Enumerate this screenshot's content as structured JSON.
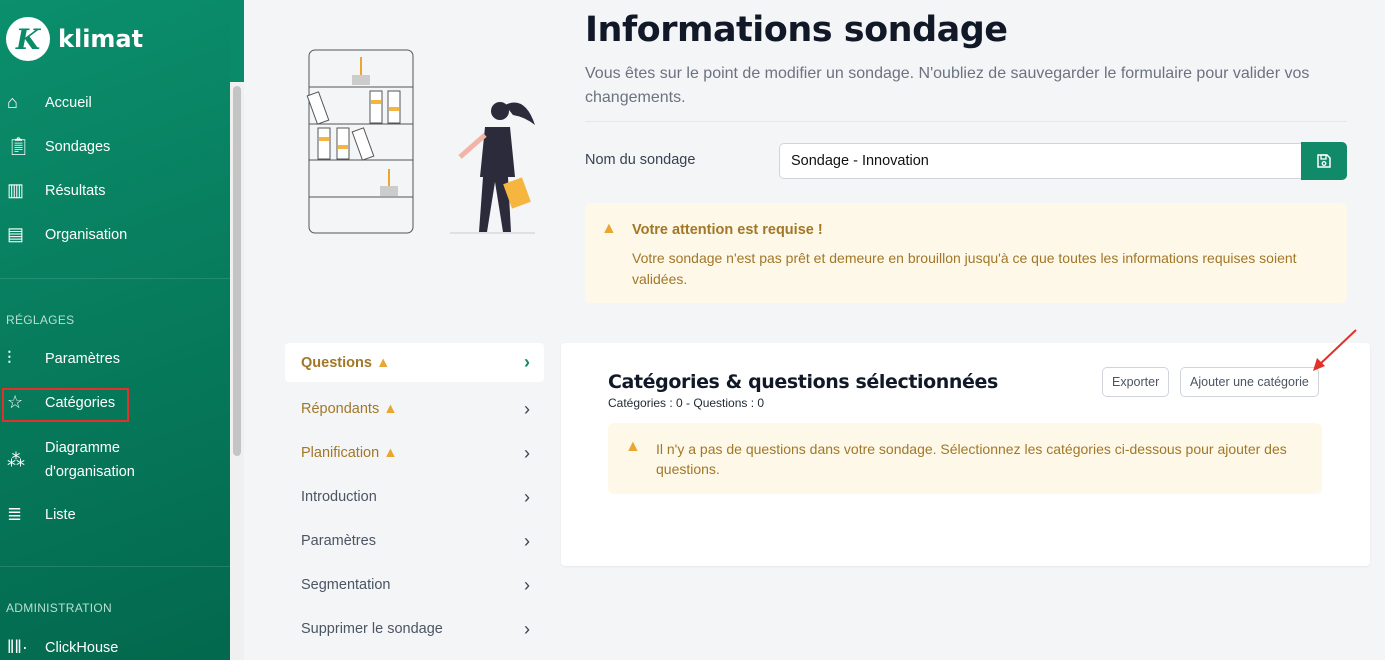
{
  "brand": {
    "name": "klimat",
    "mark": "K"
  },
  "sidebar": {
    "items": [
      {
        "label": "Accueil",
        "icon": "home-icon"
      },
      {
        "label": "Sondages",
        "icon": "clipboard-icon"
      },
      {
        "label": "Résultats",
        "icon": "chart-file-icon"
      },
      {
        "label": "Organisation",
        "icon": "layout-icon"
      }
    ],
    "settings_title": "RÉGLAGES",
    "settings_items": [
      {
        "label": "Paramètres",
        "icon": "sliders-icon"
      },
      {
        "label": "Catégories",
        "icon": "star-icon",
        "highlighted": true
      },
      {
        "label": "Diagramme d'organisation",
        "icon": "org-chart-icon"
      },
      {
        "label": "Liste",
        "icon": "list-icon"
      }
    ],
    "admin_title": "ADMINISTRATION",
    "admin_items": [
      {
        "label": "ClickHouse",
        "icon": "clickhouse-icon"
      }
    ]
  },
  "header": {
    "title": "Informations sondage",
    "subtitle": "Vous êtes sur le point de modifier un sondage. N'oubliez de sauvegarder le formulaire pour valider vos changements."
  },
  "form": {
    "name_label": "Nom du sondage",
    "name_value": "Sondage - Innovation"
  },
  "attention": {
    "title": "Votre attention est requise !",
    "text": "Votre sondage n'est pas prêt et demeure en brouillon jusqu'à ce que toutes les informations requises soient validées."
  },
  "tabs": [
    {
      "label": "Questions",
      "warning": true,
      "active": true
    },
    {
      "label": "Répondants",
      "warning": true
    },
    {
      "label": "Planification",
      "warning": true
    },
    {
      "label": "Introduction"
    },
    {
      "label": "Paramètres"
    },
    {
      "label": "Segmentation"
    },
    {
      "label": "Supprimer le sondage"
    }
  ],
  "card": {
    "title": "Catégories & questions sélectionnées",
    "counts": "Catégories : 0 - Questions : 0",
    "export_label": "Exporter",
    "add_label": "Ajouter une catégorie",
    "empty_text": "Il n'y a pas de questions dans votre sondage. Sélectionnez les catégories ci-dessous pour ajouter des questions."
  },
  "colors": {
    "brand": "#108a68",
    "warning": "#e9a630",
    "warning_text": "#a27728",
    "warning_bg": "#fdf8e8",
    "highlight": "#e0322b"
  }
}
